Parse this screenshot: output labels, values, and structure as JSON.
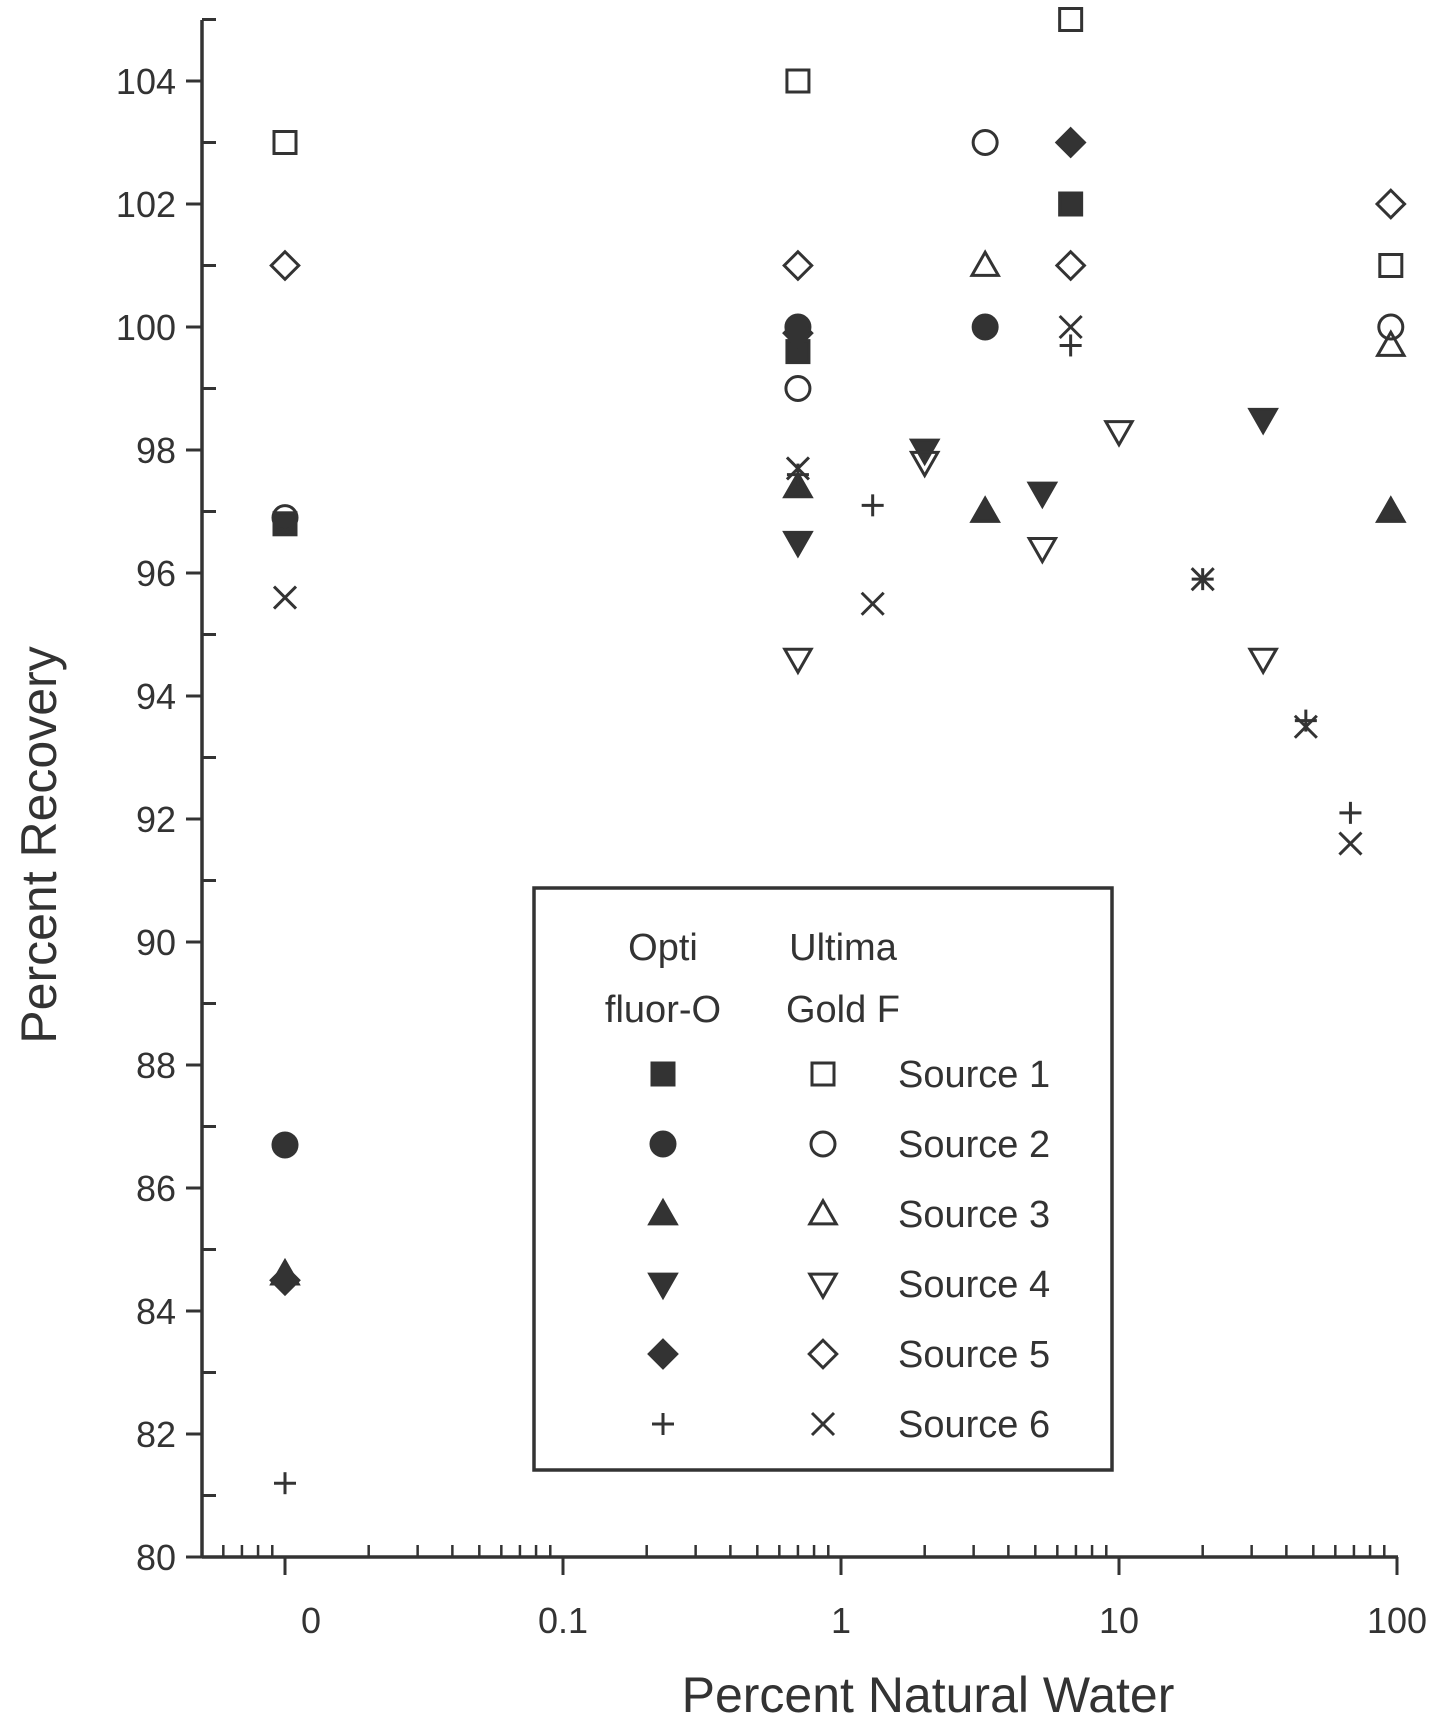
{
  "chart_data": {
    "type": "scatter",
    "xlabel": "Percent Natural Water",
    "ylabel": "Percent Recovery",
    "x_scale": "log",
    "x_ticks": [
      "0",
      "0.1",
      "1",
      "10",
      "100"
    ],
    "y_ticks": [
      "80",
      "82",
      "84",
      "86",
      "88",
      "90",
      "92",
      "94",
      "96",
      "98",
      "100",
      "102",
      "104"
    ],
    "ylim": [
      80,
      105
    ],
    "grid": false,
    "legend": {
      "placement": "bottom-center",
      "col_headers": [
        [
          "Opti",
          "fluor-O"
        ],
        [
          "Ultima",
          "Gold F"
        ]
      ],
      "entries": [
        "Source 1",
        "Source 2",
        "Source 3",
        "Source 4",
        "Source 5",
        "Source 6"
      ]
    },
    "series": [
      {
        "name": "Source 1",
        "cocktail": "Opti fluor-O",
        "marker": "square-filled",
        "points": [
          {
            "x": "0",
            "y": 96.8
          },
          {
            "x": 0.7,
            "y": 99.6
          },
          {
            "x": 6.7,
            "y": 102.0
          }
        ]
      },
      {
        "name": "Source 2",
        "cocktail": "Opti fluor-O",
        "marker": "circle-filled",
        "points": [
          {
            "x": "0",
            "y": 86.7
          },
          {
            "x": 0.7,
            "y": 100.0
          },
          {
            "x": 3.3,
            "y": 100.0
          }
        ]
      },
      {
        "name": "Source 3",
        "cocktail": "Opti fluor-O",
        "marker": "triangle-up-filled",
        "points": [
          {
            "x": "0",
            "y": 84.6
          },
          {
            "x": 0.7,
            "y": 97.4
          },
          {
            "x": 3.3,
            "y": 97.0
          },
          {
            "x": 95,
            "y": 97.0
          }
        ]
      },
      {
        "name": "Source 4",
        "cocktail": "Opti fluor-O",
        "marker": "triangle-down-filled",
        "points": [
          {
            "x": 0.7,
            "y": 96.5
          },
          {
            "x": 2.0,
            "y": 98.0
          },
          {
            "x": 5.3,
            "y": 97.3
          },
          {
            "x": 33,
            "y": 98.5
          }
        ]
      },
      {
        "name": "Source 5",
        "cocktail": "Opti fluor-O",
        "marker": "diamond-filled",
        "points": [
          {
            "x": "0",
            "y": 84.5
          },
          {
            "x": 0.7,
            "y": 99.9
          },
          {
            "x": 6.7,
            "y": 103.0
          }
        ]
      },
      {
        "name": "Source 6",
        "cocktail": "Opti fluor-O",
        "marker": "plus",
        "points": [
          {
            "x": "0",
            "y": 81.2
          },
          {
            "x": 0.7,
            "y": 97.6
          },
          {
            "x": 1.3,
            "y": 97.1
          },
          {
            "x": 6.7,
            "y": 99.7
          },
          {
            "x": 20,
            "y": 95.9
          },
          {
            "x": 47,
            "y": 93.6
          },
          {
            "x": 68,
            "y": 92.1
          }
        ]
      },
      {
        "name": "Source 1",
        "cocktail": "Ultima Gold F",
        "marker": "square-open",
        "points": [
          {
            "x": "0",
            "y": 103.0
          },
          {
            "x": 0.7,
            "y": 104.0
          },
          {
            "x": 6.7,
            "y": 105.0
          },
          {
            "x": 95,
            "y": 101.0
          }
        ]
      },
      {
        "name": "Source 2",
        "cocktail": "Ultima Gold F",
        "marker": "circle-open",
        "points": [
          {
            "x": "0",
            "y": 96.9
          },
          {
            "x": 0.7,
            "y": 99.0
          },
          {
            "x": 3.3,
            "y": 103.0
          },
          {
            "x": 95,
            "y": 100.0
          }
        ]
      },
      {
        "name": "Source 3",
        "cocktail": "Ultima Gold F",
        "marker": "triangle-up-open",
        "points": [
          {
            "x": 3.3,
            "y": 101.0
          },
          {
            "x": 95,
            "y": 99.7
          }
        ]
      },
      {
        "name": "Source 4",
        "cocktail": "Ultima Gold F",
        "marker": "triangle-down-open",
        "points": [
          {
            "x": 0.7,
            "y": 94.6
          },
          {
            "x": 2.0,
            "y": 97.8
          },
          {
            "x": 5.3,
            "y": 96.4
          },
          {
            "x": 10,
            "y": 98.3
          },
          {
            "x": 33,
            "y": 94.6
          }
        ]
      },
      {
        "name": "Source 5",
        "cocktail": "Ultima Gold F",
        "marker": "diamond-open",
        "points": [
          {
            "x": "0",
            "y": 101.0
          },
          {
            "x": 0.7,
            "y": 101.0
          },
          {
            "x": 6.7,
            "y": 101.0
          },
          {
            "x": 95,
            "y": 102.0
          }
        ]
      },
      {
        "name": "Source 6",
        "cocktail": "Ultima Gold F",
        "marker": "x",
        "points": [
          {
            "x": "0",
            "y": 95.6
          },
          {
            "x": 0.7,
            "y": 97.7
          },
          {
            "x": 1.3,
            "y": 95.5
          },
          {
            "x": 6.7,
            "y": 100.0
          },
          {
            "x": 20,
            "y": 95.9
          },
          {
            "x": 47,
            "y": 93.5
          },
          {
            "x": 68,
            "y": 91.6
          }
        ]
      }
    ]
  }
}
